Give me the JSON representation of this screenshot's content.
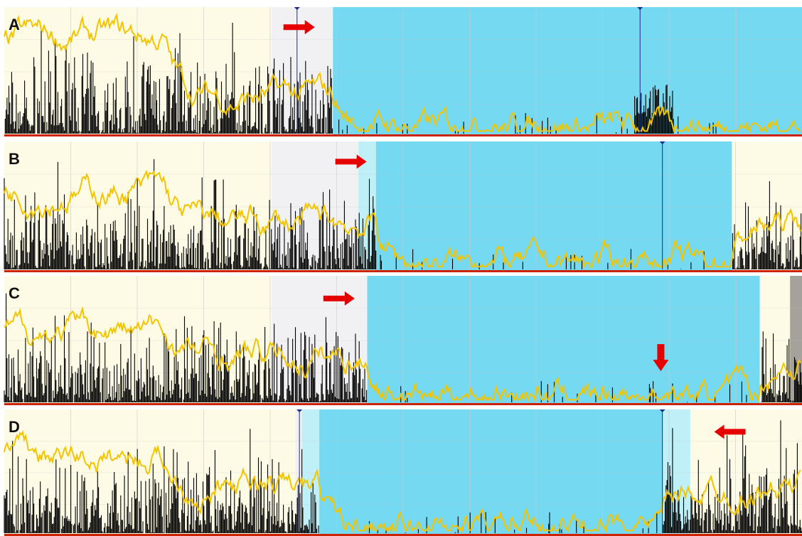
{
  "colors": {
    "sleep_bg": "#fdfbe6",
    "grey_bg": "#f1f1f3",
    "blue_bg": "#74d9f1",
    "light_cyan_bg": "#bff0f7",
    "dark_grey_bg": "#a4a29b",
    "grid": "#c8c8c8",
    "blue_grid": "#5cbfd9",
    "activity": "#000000",
    "light_line": "#f2c500",
    "bottom_bar": "#cc2200",
    "marker": "#1a2a8c",
    "arrow": "#e60000",
    "border": "#ffffff"
  },
  "chart_data": [
    {
      "type": "area",
      "panel_label": "A",
      "series": [
        {
          "values_note": ""
        }
      ],
      "icons": [
        "arrow-right-icon"
      ],
      "phases": [
        {
          "kind": "sleep",
          "from": 0,
          "to": 0.335
        },
        {
          "kind": "grey",
          "from": 0.335,
          "to": 0.412
        },
        {
          "kind": "blue",
          "from": 0.412,
          "to": 1.0
        }
      ],
      "markers": [
        0.367,
        0.797
      ],
      "arrows": [
        {
          "dir": "right",
          "at": 0.35,
          "y": 0.1
        }
      ],
      "activity_low": [
        0.0,
        0.412
      ],
      "burst": [
        0.79,
        0.84
      ],
      "light_level": [
        0.74,
        0.28,
        0.1
      ],
      "grid_lines": 12
    },
    {
      "type": "area",
      "panel_label": "B",
      "icons": [
        "arrow-right-icon"
      ],
      "phases": [
        {
          "kind": "sleep",
          "from": 0,
          "to": 0.335
        },
        {
          "kind": "grey",
          "from": 0.335,
          "to": 0.444
        },
        {
          "kind": "light-cyan",
          "from": 0.444,
          "to": 0.466
        },
        {
          "kind": "blue",
          "from": 0.466,
          "to": 0.912
        },
        {
          "kind": "sleep",
          "from": 0.912,
          "to": 1.0
        }
      ],
      "markers": [
        0.825
      ],
      "arrows": [
        {
          "dir": "right",
          "at": 0.415,
          "y": 0.1
        }
      ],
      "light_level": [
        0.6,
        0.35,
        0.1
      ],
      "grid_lines": 12
    },
    {
      "type": "area",
      "panel_label": "C",
      "icons": [
        "arrow-right-icon",
        "arrow-down-icon"
      ],
      "phases": [
        {
          "kind": "sleep",
          "from": 0,
          "to": 0.335
        },
        {
          "kind": "grey",
          "from": 0.335,
          "to": 0.455
        },
        {
          "kind": "blue",
          "from": 0.455,
          "to": 0.947
        },
        {
          "kind": "sleep",
          "from": 0.947,
          "to": 0.985
        },
        {
          "kind": "dark-grey",
          "from": 0.985,
          "to": 1.0
        }
      ],
      "markers": [],
      "arrows": [
        {
          "dir": "right",
          "at": 0.4,
          "y": 0.12
        },
        {
          "dir": "down",
          "at": 0.823,
          "y": 0.55
        }
      ],
      "light_level": [
        0.55,
        0.35,
        0.1
      ],
      "grid_lines": 12
    },
    {
      "type": "area",
      "panel_label": "D",
      "icons": [
        "arrow-left-icon"
      ],
      "phases": [
        {
          "kind": "sleep",
          "from": 0,
          "to": 0.365
        },
        {
          "kind": "grey",
          "from": 0.365,
          "to": 0.373
        },
        {
          "kind": "light-cyan",
          "from": 0.373,
          "to": 0.395
        },
        {
          "kind": "blue",
          "from": 0.395,
          "to": 0.825
        },
        {
          "kind": "light-cyan",
          "from": 0.825,
          "to": 0.86
        },
        {
          "kind": "sleep",
          "from": 0.86,
          "to": 1.0
        }
      ],
      "markers": [
        0.37,
        0.825
      ],
      "arrows": [
        {
          "dir": "left",
          "at": 0.89,
          "y": 0.12
        }
      ],
      "light_level": [
        0.6,
        0.35,
        0.1
      ],
      "grid_lines": 12
    }
  ]
}
